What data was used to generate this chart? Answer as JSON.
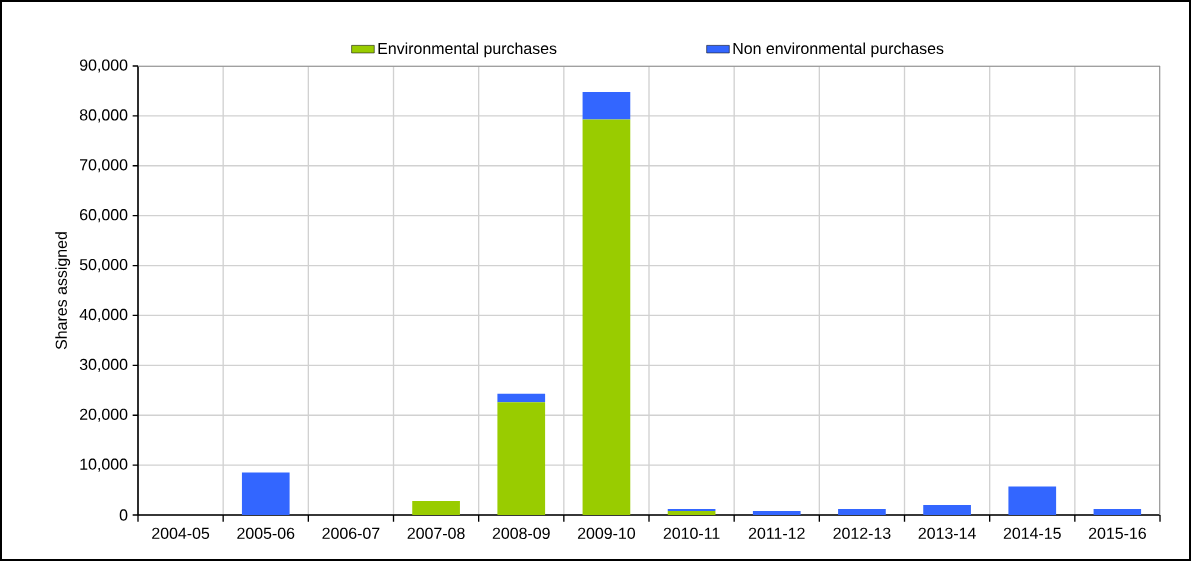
{
  "chart_data": {
    "type": "bar",
    "ylabel": "Shares assigned",
    "categories": [
      "2004-05",
      "2005-06",
      "2006-07",
      "2007-08",
      "2008-09",
      "2009-10",
      "2010-11",
      "2011-12",
      "2012-13",
      "2013-14",
      "2014-15",
      "2015-16"
    ],
    "stacked": true,
    "series": [
      {
        "name": "Environmental purchases",
        "color": "#99cc00",
        "values": [
          0,
          0,
          0,
          2800,
          22600,
          79300,
          800,
          0,
          0,
          0,
          0,
          0
        ]
      },
      {
        "name": "Non environmental purchases",
        "color": "#3366ff",
        "values": [
          0,
          8500,
          0,
          0,
          1700,
          5500,
          400,
          800,
          1200,
          2000,
          5700,
          1200
        ]
      }
    ],
    "ylim": [
      0,
      90000
    ],
    "yticks": [
      0,
      {
        "value": 10000,
        "label": "10,000"
      },
      {
        "value": 20000,
        "label": "20,000"
      },
      {
        "value": 30000,
        "label": "30,000"
      },
      {
        "value": 40000,
        "label": "40,000"
      },
      {
        "value": 50000,
        "label": "50,000"
      },
      {
        "value": 60000,
        "label": "60,000"
      },
      {
        "value": 70000,
        "label": "70,000"
      },
      {
        "value": 80000,
        "label": "80,000"
      },
      {
        "value": 90000,
        "label": "90,000"
      }
    ],
    "grid": true,
    "legend": "top"
  }
}
